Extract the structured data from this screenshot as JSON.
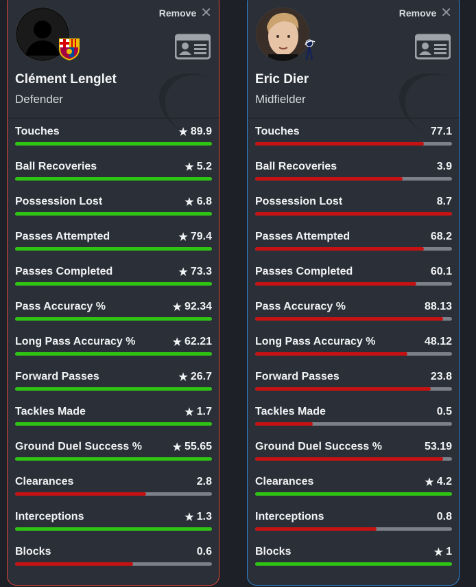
{
  "colors": {
    "win": "#2fc313",
    "lose": "#c61212",
    "track": "#7c8088",
    "left_border": "#e0443a",
    "right_border": "#2f86d6"
  },
  "players": [
    {
      "name": "Clément Lenglet",
      "position": "Defender",
      "remove_label": "Remove",
      "club_icon": "barcelona-crest-icon",
      "avatar": "silhouette",
      "stats": [
        {
          "label": "Touches",
          "value": "89.9",
          "star": true,
          "color": "green",
          "fill": 1.0
        },
        {
          "label": "Ball Recoveries",
          "value": "5.2",
          "star": true,
          "color": "green",
          "fill": 1.0
        },
        {
          "label": "Possession Lost",
          "value": "6.8",
          "star": true,
          "color": "green",
          "fill": 1.0
        },
        {
          "label": "Passes Attempted",
          "value": "79.4",
          "star": true,
          "color": "green",
          "fill": 1.0
        },
        {
          "label": "Passes Completed",
          "value": "73.3",
          "star": true,
          "color": "green",
          "fill": 1.0
        },
        {
          "label": "Pass Accuracy %",
          "value": "92.34",
          "star": true,
          "color": "green",
          "fill": 1.0
        },
        {
          "label": "Long Pass Accuracy %",
          "value": "62.21",
          "star": true,
          "color": "green",
          "fill": 1.0
        },
        {
          "label": "Forward Passes",
          "value": "26.7",
          "star": true,
          "color": "green",
          "fill": 1.0
        },
        {
          "label": "Tackles Made",
          "value": "1.7",
          "star": true,
          "color": "green",
          "fill": 1.0
        },
        {
          "label": "Ground Duel Success %",
          "value": "55.65",
          "star": true,
          "color": "green",
          "fill": 1.0
        },
        {
          "label": "Clearances",
          "value": "2.8",
          "star": false,
          "color": "red",
          "fill": 0.667
        },
        {
          "label": "Interceptions",
          "value": "1.3",
          "star": true,
          "color": "green",
          "fill": 1.0
        },
        {
          "label": "Blocks",
          "value": "0.6",
          "star": false,
          "color": "red",
          "fill": 0.6
        }
      ]
    },
    {
      "name": "Eric Dier",
      "position": "Midfielder",
      "remove_label": "Remove",
      "club_icon": "tottenham-crest-icon",
      "avatar": "photo",
      "stats": [
        {
          "label": "Touches",
          "value": "77.1",
          "star": false,
          "color": "red",
          "fill": 0.857
        },
        {
          "label": "Ball Recoveries",
          "value": "3.9",
          "star": false,
          "color": "red",
          "fill": 0.75
        },
        {
          "label": "Possession Lost",
          "value": "8.7",
          "star": false,
          "color": "red",
          "fill": 1.0
        },
        {
          "label": "Passes Attempted",
          "value": "68.2",
          "star": false,
          "color": "red",
          "fill": 0.858
        },
        {
          "label": "Passes Completed",
          "value": "60.1",
          "star": false,
          "color": "red",
          "fill": 0.82
        },
        {
          "label": "Pass Accuracy %",
          "value": "88.13",
          "star": false,
          "color": "red",
          "fill": 0.954
        },
        {
          "label": "Long Pass Accuracy %",
          "value": "48.12",
          "star": false,
          "color": "red",
          "fill": 0.773
        },
        {
          "label": "Forward Passes",
          "value": "23.8",
          "star": false,
          "color": "red",
          "fill": 0.891
        },
        {
          "label": "Tackles Made",
          "value": "0.5",
          "star": false,
          "color": "red",
          "fill": 0.294
        },
        {
          "label": "Ground Duel Success %",
          "value": "53.19",
          "star": false,
          "color": "red",
          "fill": 0.956
        },
        {
          "label": "Clearances",
          "value": "4.2",
          "star": true,
          "color": "green",
          "fill": 1.0
        },
        {
          "label": "Interceptions",
          "value": "0.8",
          "star": false,
          "color": "red",
          "fill": 0.615
        },
        {
          "label": "Blocks",
          "value": "1",
          "star": true,
          "color": "green",
          "fill": 1.0
        }
      ]
    }
  ]
}
